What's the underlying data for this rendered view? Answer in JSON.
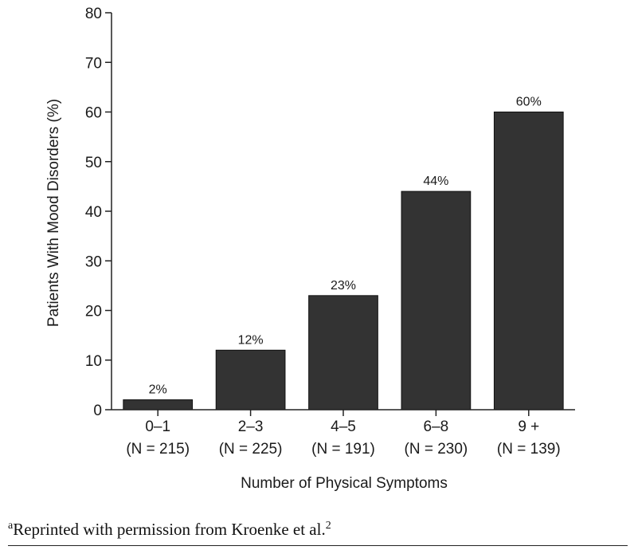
{
  "chart_data": {
    "type": "bar",
    "categories": [
      "0–1",
      "2–3",
      "4–5",
      "6–8",
      "9 +"
    ],
    "sample_sizes": [
      "(N = 215)",
      "(N = 225)",
      "(N = 191)",
      "(N = 230)",
      "(N = 139)"
    ],
    "values": [
      2,
      12,
      23,
      44,
      60
    ],
    "data_labels": [
      "2%",
      "12%",
      "23%",
      "44%",
      "60%"
    ],
    "xlabel": "Number of Physical Symptoms",
    "ylabel": "Patients With Mood Disorders (%)",
    "ylim": [
      0,
      80
    ],
    "yticks": [
      0,
      10,
      20,
      30,
      40,
      50,
      60,
      70,
      80
    ],
    "grid": false,
    "legend": "none",
    "bar_color": "#333333"
  },
  "footnote": {
    "marker": "a",
    "text": "Reprinted with permission from Kroenke et al.",
    "ref": "2"
  }
}
